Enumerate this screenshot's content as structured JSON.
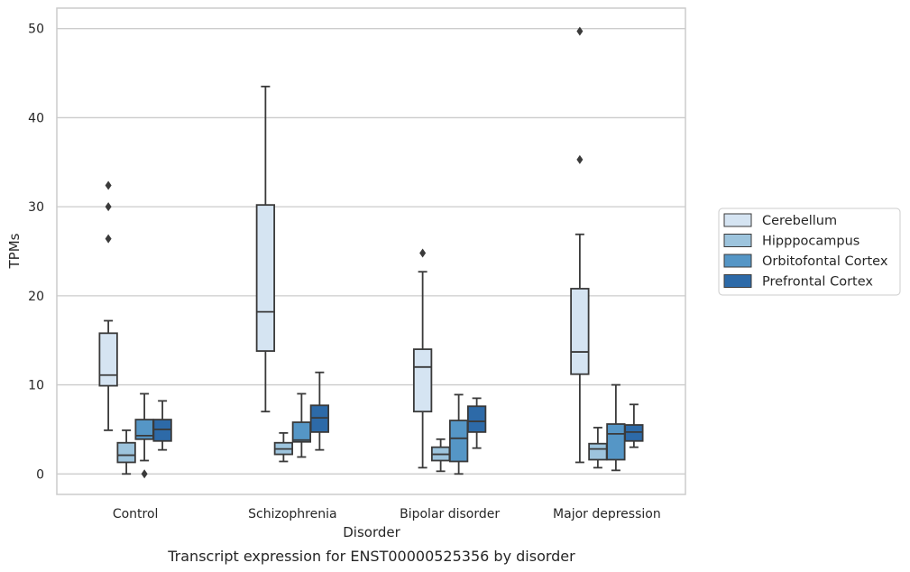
{
  "caption": "Transcript expression for ENST00000525356 by disorder",
  "chart_data": {
    "type": "box",
    "title": "",
    "xlabel": "Disorder",
    "ylabel": "TPMs",
    "ylim": [
      -2.3,
      52.3
    ],
    "yticks": [
      0,
      10,
      20,
      30,
      40,
      50
    ],
    "grid": "horizontal",
    "legend_position": "right",
    "categories": [
      "Control",
      "Schizophrenia",
      "Bipolar disorder",
      "Major depression"
    ],
    "series": [
      {
        "name": "Cerebellum",
        "color": "#d5e4f2",
        "boxes": [
          {
            "whislo": 4.9,
            "q1": 9.9,
            "med": 11.1,
            "q3": 15.8,
            "whishi": 17.2,
            "fliers": [
              26.4,
              30.0,
              32.4
            ]
          },
          {
            "whislo": 7.0,
            "q1": 13.8,
            "med": 18.2,
            "q3": 30.2,
            "whishi": 43.5,
            "fliers": []
          },
          {
            "whislo": 0.7,
            "q1": 7.0,
            "med": 12.0,
            "q3": 14.0,
            "whishi": 22.7,
            "fliers": [
              24.8
            ]
          },
          {
            "whislo": 1.3,
            "q1": 11.2,
            "med": 13.7,
            "q3": 20.8,
            "whishi": 26.9,
            "fliers": [
              35.3,
              49.7
            ]
          }
        ]
      },
      {
        "name": "Hipppocampus",
        "color": "#9dc4dd",
        "boxes": [
          {
            "whislo": 0.0,
            "q1": 1.3,
            "med": 2.1,
            "q3": 3.5,
            "whishi": 4.9,
            "fliers": []
          },
          {
            "whislo": 1.4,
            "q1": 2.2,
            "med": 2.8,
            "q3": 3.5,
            "whishi": 4.6,
            "fliers": []
          },
          {
            "whislo": 0.3,
            "q1": 1.5,
            "med": 2.2,
            "q3": 3.0,
            "whishi": 3.9,
            "fliers": []
          },
          {
            "whislo": 0.7,
            "q1": 1.6,
            "med": 2.8,
            "q3": 3.4,
            "whishi": 5.2,
            "fliers": []
          }
        ]
      },
      {
        "name": "Orbitofontal Cortex",
        "color": "#5596c6",
        "boxes": [
          {
            "whislo": 1.5,
            "q1": 3.9,
            "med": 4.3,
            "q3": 6.1,
            "whishi": 9.0,
            "fliers": [
              0.0
            ]
          },
          {
            "whislo": 1.9,
            "q1": 3.6,
            "med": 3.8,
            "q3": 5.8,
            "whishi": 9.0,
            "fliers": []
          },
          {
            "whislo": 0.0,
            "q1": 1.4,
            "med": 4.0,
            "q3": 6.0,
            "whishi": 8.9,
            "fliers": []
          },
          {
            "whislo": 0.4,
            "q1": 1.6,
            "med": 4.5,
            "q3": 5.6,
            "whishi": 10.0,
            "fliers": []
          }
        ]
      },
      {
        "name": "Prefrontal Cortex",
        "color": "#2d6aa8",
        "boxes": [
          {
            "whislo": 2.7,
            "q1": 3.7,
            "med": 5.0,
            "q3": 6.1,
            "whishi": 8.2,
            "fliers": []
          },
          {
            "whislo": 2.7,
            "q1": 4.7,
            "med": 6.3,
            "q3": 7.7,
            "whishi": 11.4,
            "fliers": []
          },
          {
            "whislo": 2.9,
            "q1": 4.7,
            "med": 5.9,
            "q3": 7.6,
            "whishi": 8.5,
            "fliers": []
          },
          {
            "whislo": 3.0,
            "q1": 3.7,
            "med": 4.7,
            "q3": 5.5,
            "whishi": 7.8,
            "fliers": []
          }
        ]
      }
    ]
  }
}
